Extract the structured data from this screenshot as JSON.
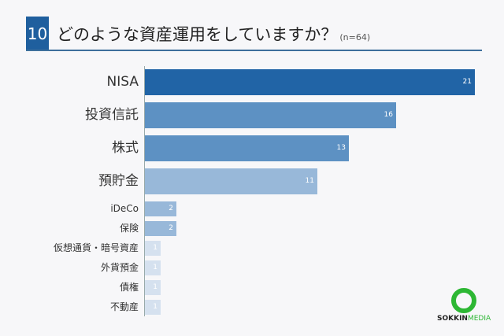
{
  "header": {
    "question_number": "10",
    "title": "どのような資産運用をしていますか？",
    "sample": "(n=64)"
  },
  "logo": {
    "brand_bold": "SOKKIN",
    "brand_light": "MEDIA"
  },
  "chart_data": {
    "type": "bar",
    "orientation": "horizontal",
    "title": "どのような資産運用をしていますか？ (n=64)",
    "categories": [
      "NISA",
      "投資信託",
      "株式",
      "預貯金",
      "iDeCo",
      "保険",
      "仮想通貨・暗号資産",
      "外貨預金",
      "債権",
      "不動産"
    ],
    "values": [
      21,
      16,
      13,
      11,
      2,
      2,
      1,
      1,
      1,
      1
    ],
    "colors": [
      "#2164a6",
      "#5d91c3",
      "#5d91c3",
      "#98b8d9",
      "#98b8d9",
      "#98b8d9",
      "#d5e1ef",
      "#d5e1ef",
      "#d5e1ef",
      "#d5e1ef"
    ],
    "xlabel": "",
    "ylabel": "",
    "grid": false,
    "data_labels": true
  },
  "rows": [
    {
      "label": "NISA",
      "value": "21"
    },
    {
      "label": "投資信託",
      "value": "16"
    },
    {
      "label": "株式",
      "value": "13"
    },
    {
      "label": "預貯金",
      "value": "11"
    },
    {
      "label": "iDeCo",
      "value": "2"
    },
    {
      "label": "保険",
      "value": "2"
    },
    {
      "label": "仮想通貨・暗号資産",
      "value": "1"
    },
    {
      "label": "外貨預金",
      "value": "1"
    },
    {
      "label": "債権",
      "value": "1"
    },
    {
      "label": "不動産",
      "value": "1"
    }
  ]
}
